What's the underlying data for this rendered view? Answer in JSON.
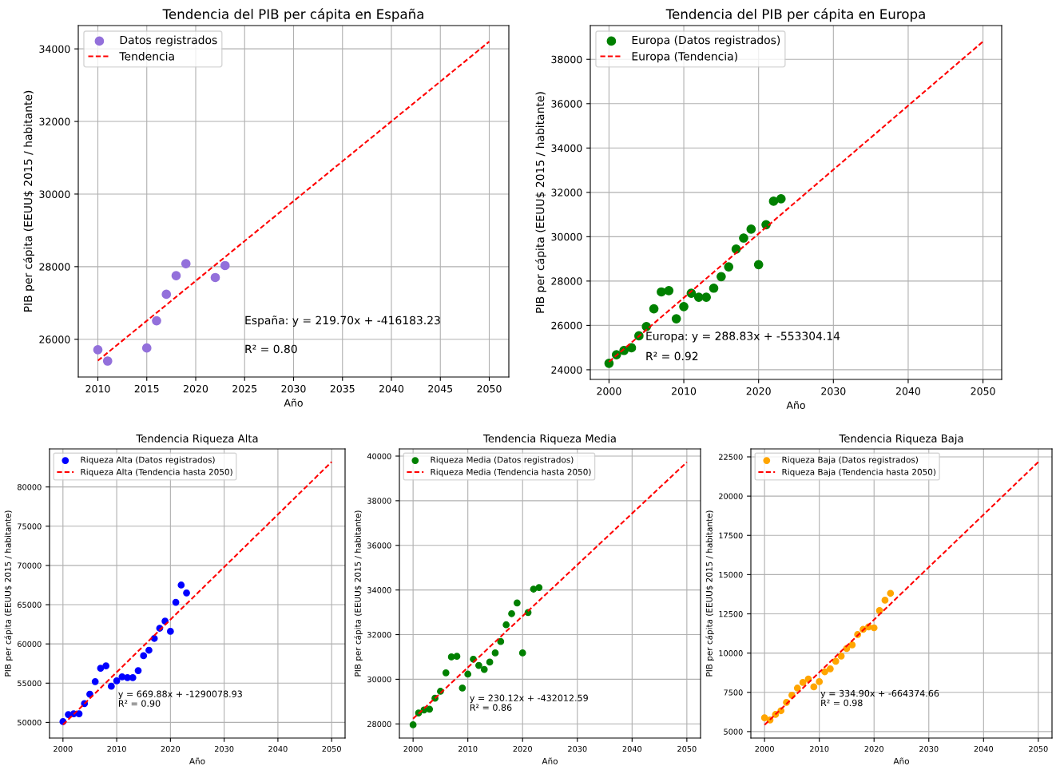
{
  "chart_data": [
    {
      "type": "scatter",
      "title": "Tendencia del PIB per cápita en España",
      "xlabel": "Año",
      "ylabel": "PIB per cápita (EEUU$ 2015 / habitante)",
      "xlim": [
        2008,
        2052
      ],
      "xticks": [
        2010,
        2015,
        2020,
        2025,
        2030,
        2035,
        2040,
        2045,
        2050
      ],
      "ylim": [
        24960,
        34642
      ],
      "yticks": [
        26000,
        28000,
        30000,
        32000,
        34000
      ],
      "grid": true,
      "legend": "top left",
      "series": [
        {
          "name": "Datos registrados",
          "color": "#9370db",
          "marker": "circle",
          "x": [
            2010,
            2011,
            2015,
            2016,
            2017,
            2018,
            2019,
            2022,
            2023
          ],
          "values": [
            25710,
            25400,
            25760,
            26510,
            27240,
            27750,
            28080,
            27700,
            28030
          ]
        },
        {
          "name": "Tendencia",
          "color": "#ff0000",
          "type": "line",
          "marker": "none",
          "line_style": "dashed",
          "x": [
            2010,
            2050
          ],
          "values": [
            25410,
            34200
          ]
        }
      ],
      "annotations": [
        "España: y = 219.70x + -416183.23",
        "R² = 0.80"
      ]
    },
    {
      "type": "scatter",
      "title": "Tendencia del PIB per cápita en Europa",
      "xlabel": "Año",
      "ylabel": "PIB per cápita (EEUU$ 2015 / habitante)",
      "xlim": [
        1997.5,
        2052.5
      ],
      "xticks": [
        2000,
        2010,
        2020,
        2030,
        2040,
        2050
      ],
      "ylim": [
        23565,
        39522
      ],
      "yticks": [
        24000,
        26000,
        28000,
        30000,
        32000,
        34000,
        36000,
        38000
      ],
      "grid": true,
      "legend": "top left",
      "series": [
        {
          "name": "Europa (Datos registrados)",
          "color": "#008000",
          "marker": "circle",
          "x": [
            2000,
            2001,
            2002,
            2003,
            2004,
            2005,
            2006,
            2007,
            2008,
            2009,
            2010,
            2011,
            2012,
            2013,
            2014,
            2015,
            2016,
            2017,
            2018,
            2019,
            2020,
            2021,
            2022,
            2023
          ],
          "values": [
            24290,
            24680,
            24870,
            24990,
            25530,
            25950,
            26750,
            27510,
            27570,
            26300,
            26850,
            27450,
            27270,
            27270,
            27680,
            28200,
            28640,
            29440,
            29940,
            30340,
            28740,
            30540,
            31600,
            31710
          ]
        },
        {
          "name": "Europa (Tendencia)",
          "color": "#ff0000",
          "type": "line",
          "marker": "none",
          "line_style": "dashed",
          "x": [
            2000,
            2050
          ],
          "values": [
            24360,
            38800
          ]
        }
      ],
      "annotations": [
        "Europa: y = 288.83x + -553304.14",
        "R² = 0.92"
      ]
    },
    {
      "type": "scatter",
      "title": "Tendencia Riqueza Alta",
      "xlabel": "Año",
      "ylabel": "PIB per cápita (EEUU$ 2015 / habitante)",
      "xlim": [
        1997.5,
        2052.5
      ],
      "xticks": [
        2000,
        2010,
        2020,
        2030,
        2040,
        2050
      ],
      "ylim": [
        48006,
        84850
      ],
      "yticks": [
        50000,
        55000,
        60000,
        65000,
        70000,
        75000,
        80000
      ],
      "grid": true,
      "legend": "top left",
      "series": [
        {
          "name": "Riqueza Alta (Datos registrados)",
          "color": "#0000ff",
          "marker": "circle",
          "x": [
            2000,
            2001,
            2002,
            2003,
            2004,
            2005,
            2006,
            2007,
            2008,
            2009,
            2010,
            2011,
            2012,
            2013,
            2014,
            2015,
            2016,
            2017,
            2018,
            2019,
            2020,
            2021,
            2022,
            2023
          ],
          "values": [
            50100,
            51000,
            51100,
            51100,
            52400,
            53600,
            55200,
            56900,
            57200,
            54600,
            55300,
            55800,
            55700,
            55700,
            56600,
            58500,
            59200,
            60700,
            62000,
            62900,
            61600,
            65300,
            67500,
            66500
          ]
        },
        {
          "name": "Riqueza Alta (Tendencia hasta 2050)",
          "color": "#ff0000",
          "type": "line",
          "marker": "none",
          "line_style": "dashed",
          "x": [
            2000,
            2050
          ],
          "values": [
            49700,
            83200
          ]
        }
      ],
      "annotations": [
        "y = 669.88x + -1290078.93",
        "R² = 0.90"
      ]
    },
    {
      "type": "scatter",
      "title": "Tendencia Riqueza Media",
      "xlabel": "Año",
      "ylabel": "PIB per cápita (EEUU$ 2015 / habitante)",
      "xlim": [
        1997.5,
        2052.5
      ],
      "xticks": [
        2000,
        2010,
        2020,
        2030,
        2040,
        2050
      ],
      "ylim": [
        27366,
        40322
      ],
      "yticks": [
        28000,
        30000,
        32000,
        34000,
        36000,
        38000,
        40000
      ],
      "grid": true,
      "legend": "top left",
      "series": [
        {
          "name": "Riqueza Media (Datos registrados)",
          "color": "#008000",
          "marker": "circle",
          "x": [
            2000,
            2001,
            2002,
            2003,
            2004,
            2005,
            2006,
            2007,
            2008,
            2009,
            2010,
            2011,
            2012,
            2013,
            2014,
            2015,
            2016,
            2017,
            2018,
            2019,
            2020,
            2021,
            2022,
            2023
          ],
          "values": [
            27960,
            28490,
            28620,
            28660,
            29150,
            29460,
            30290,
            31000,
            31030,
            29610,
            30230,
            30900,
            30620,
            30440,
            30770,
            31180,
            31690,
            32440,
            32940,
            33420,
            31180,
            32990,
            34040,
            34110
          ]
        },
        {
          "name": "Riqueza Media (Tendencia hasta 2050)",
          "color": "#ff0000",
          "type": "line",
          "marker": "none",
          "line_style": "dashed",
          "x": [
            2000,
            2050
          ],
          "values": [
            28230,
            39730
          ]
        }
      ],
      "annotations": [
        "y = 230.12x + -432012.59",
        "R² = 0.86"
      ]
    },
    {
      "type": "scatter",
      "title": "Tendencia Riqueza Baja",
      "xlabel": "Año",
      "ylabel": "PIB per cápita (EEUU$ 2015 / habitante)",
      "xlim": [
        1997.5,
        2052.5
      ],
      "xticks": [
        2000,
        2010,
        2020,
        2030,
        2040,
        2050
      ],
      "ylim": [
        4588,
        23008
      ],
      "yticks": [
        5000,
        7500,
        10000,
        12500,
        15000,
        17500,
        20000,
        22500
      ],
      "grid": true,
      "legend": "top left",
      "series": [
        {
          "name": "Riqueza Baja (Datos registrados)",
          "color": "#ffa500",
          "marker": "circle",
          "x": [
            2000,
            2001,
            2002,
            2003,
            2004,
            2005,
            2006,
            2007,
            2008,
            2009,
            2010,
            2011,
            2012,
            2013,
            2014,
            2015,
            2016,
            2017,
            2018,
            2019,
            2020,
            2021,
            2022,
            2023
          ],
          "values": [
            5880,
            5740,
            6090,
            6330,
            6860,
            7320,
            7770,
            8130,
            8350,
            7850,
            8180,
            8810,
            9000,
            9480,
            9810,
            10290,
            10520,
            11180,
            11510,
            11670,
            11610,
            12710,
            13370,
            13810
          ]
        },
        {
          "name": "Riqueza Baja (Tendencia hasta 2050)",
          "color": "#ff0000",
          "type": "line",
          "marker": "none",
          "line_style": "dashed",
          "x": [
            2000,
            2050
          ],
          "values": [
            5430,
            22170
          ]
        }
      ],
      "annotations": [
        "y = 334.90x + -664374.66",
        "R² = 0.98"
      ]
    }
  ]
}
